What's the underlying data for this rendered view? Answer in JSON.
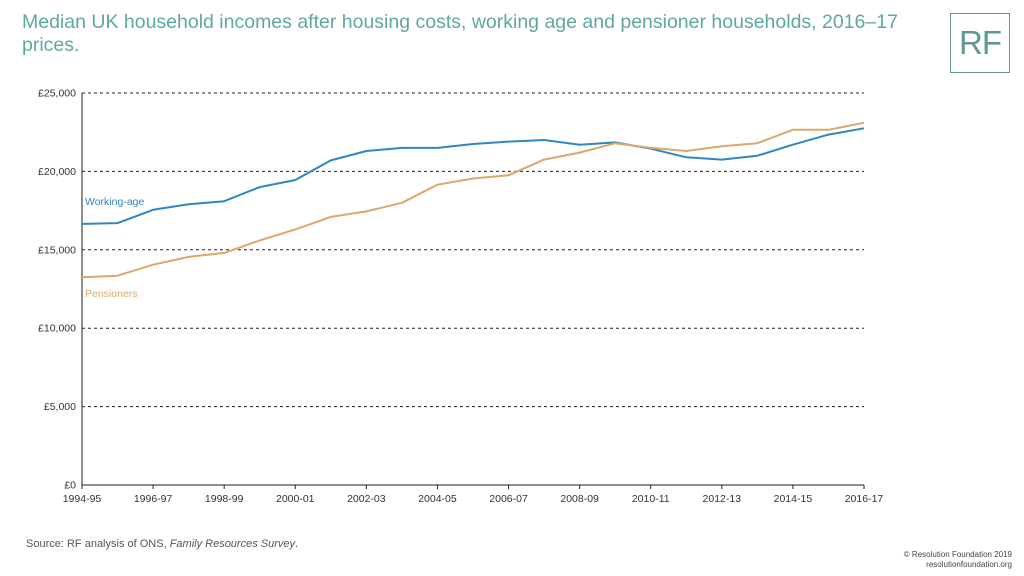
{
  "header": {
    "title": "Median UK household incomes after housing costs, working age and pensioner households, 2016–17 prices.",
    "logo_text": "RF"
  },
  "footer": {
    "source_label": "Source:",
    "source_text": "RF analysis of ONS,",
    "source_italic": "Family Resources Survey",
    "source_end": ".",
    "copyright": "© Resolution Foundation 2019",
    "website": "resolutionfoundation.org"
  },
  "chart_data": {
    "type": "line",
    "title": "Median UK household incomes after housing costs, working age and pensioner households, 2016–17 prices.",
    "xlabel": "",
    "ylabel": "",
    "ylim": [
      0,
      25000
    ],
    "yticks": [
      0,
      5000,
      10000,
      15000,
      20000,
      25000
    ],
    "ytick_labels": [
      "£0",
      "£5,000",
      "£10,000",
      "£15,000",
      "£20,000",
      "£25,000"
    ],
    "grid": "horizontal dashed",
    "x": [
      "1994-95",
      "1995-96",
      "1996-97",
      "1997-98",
      "1998-99",
      "1999-00",
      "2000-01",
      "2001-02",
      "2002-03",
      "2003-04",
      "2004-05",
      "2005-06",
      "2006-07",
      "2007-08",
      "2008-09",
      "2009-10",
      "2010-11",
      "2011-12",
      "2012-13",
      "2013-14",
      "2014-15",
      "2015-16",
      "2016-17"
    ],
    "xtick_labels": [
      "1994-95",
      "1996-97",
      "1998-99",
      "2000-01",
      "2002-03",
      "2004-05",
      "2006-07",
      "2008-09",
      "2010-11",
      "2012-13",
      "2014-15",
      "2016-17"
    ],
    "series": [
      {
        "name": "Working-age",
        "color": "#2f86c0",
        "values": [
          16650,
          16700,
          17550,
          17900,
          18100,
          19000,
          19450,
          20700,
          21300,
          21500,
          21500,
          21750,
          21900,
          22000,
          21700,
          21850,
          21450,
          20900,
          20750,
          21000,
          21700,
          22350,
          22750
        ]
      },
      {
        "name": "Pensioners",
        "color": "#d9a86a",
        "values": [
          13250,
          13350,
          14050,
          14550,
          14800,
          15600,
          16300,
          17100,
          17450,
          18000,
          19150,
          19550,
          19750,
          20750,
          21200,
          21800,
          21500,
          21300,
          21600,
          21800,
          22650,
          22650,
          23100
        ]
      }
    ]
  }
}
